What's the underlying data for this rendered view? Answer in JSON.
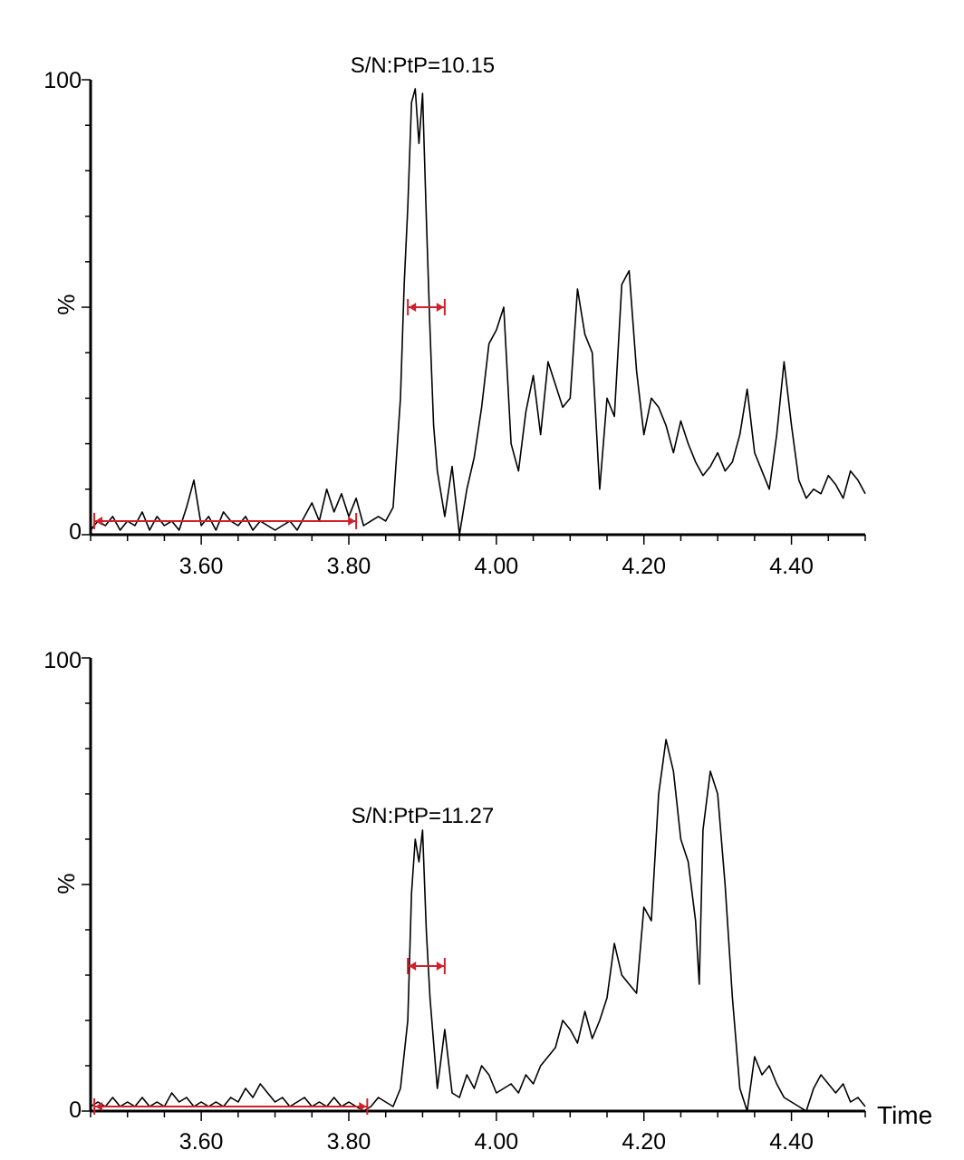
{
  "chart_data": [
    {
      "type": "line",
      "title": "",
      "xlabel": "",
      "ylabel": "%",
      "xlim": [
        3.45,
        4.5
      ],
      "ylim": [
        0,
        100
      ],
      "x_ticks": [
        "3.60",
        "3.80",
        "4.00",
        "4.20",
        "4.40"
      ],
      "y_ticks": [
        "0",
        "100"
      ],
      "grid": false,
      "series": [
        {
          "x": [
            3.45,
            3.46,
            3.47,
            3.48,
            3.49,
            3.5,
            3.51,
            3.52,
            3.53,
            3.54,
            3.55,
            3.56,
            3.57,
            3.58,
            3.59,
            3.6,
            3.61,
            3.62,
            3.63,
            3.64,
            3.65,
            3.66,
            3.67,
            3.68,
            3.69,
            3.7,
            3.71,
            3.72,
            3.73,
            3.74,
            3.75,
            3.76,
            3.77,
            3.78,
            3.79,
            3.8,
            3.81,
            3.82,
            3.83,
            3.84,
            3.85,
            3.86,
            3.87,
            3.875,
            3.88,
            3.885,
            3.89,
            3.895,
            3.9,
            3.905,
            3.91,
            3.915,
            3.92,
            3.93,
            3.94,
            3.95,
            3.96,
            3.97,
            3.98,
            3.99,
            4.0,
            4.01,
            4.02,
            4.03,
            4.04,
            4.05,
            4.06,
            4.07,
            4.08,
            4.09,
            4.1,
            4.11,
            4.12,
            4.13,
            4.14,
            4.15,
            4.16,
            4.17,
            4.18,
            4.19,
            4.2,
            4.21,
            4.22,
            4.23,
            4.24,
            4.25,
            4.26,
            4.27,
            4.28,
            4.29,
            4.3,
            4.31,
            4.32,
            4.33,
            4.34,
            4.35,
            4.36,
            4.37,
            4.38,
            4.39,
            4.4,
            4.41,
            4.42,
            4.43,
            4.44,
            4.45,
            4.46,
            4.47,
            4.48,
            4.49,
            4.5
          ],
          "y": [
            1,
            3,
            2,
            4,
            1,
            3,
            2,
            5,
            1,
            4,
            2,
            3,
            1,
            6,
            12,
            2,
            4,
            1,
            5,
            3,
            2,
            4,
            1,
            3,
            2,
            1,
            2,
            3,
            1,
            4,
            7,
            3,
            10,
            5,
            9,
            4,
            8,
            2,
            3,
            4,
            3,
            6,
            30,
            55,
            72,
            95,
            98,
            86,
            97,
            70,
            45,
            24,
            14,
            4,
            15,
            0,
            10,
            17,
            28,
            42,
            45,
            50,
            20,
            14,
            27,
            35,
            22,
            38,
            33,
            28,
            30,
            54,
            44,
            40,
            10,
            30,
            26,
            55,
            58,
            36,
            22,
            30,
            28,
            24,
            18,
            25,
            20,
            16,
            13,
            15,
            18,
            14,
            16,
            22,
            32,
            18,
            14,
            10,
            22,
            38,
            24,
            12,
            8,
            10,
            9,
            13,
            11,
            8,
            14,
            12,
            9
          ],
          "name": ""
        }
      ],
      "annotations": [
        {
          "text": "S/N:PtP=10.15",
          "x": 3.9,
          "y": 100
        },
        {
          "type": "interval",
          "x0": 3.88,
          "x1": 3.93,
          "y": 50
        },
        {
          "type": "interval",
          "x0": 3.455,
          "x1": 3.81,
          "y": 3
        }
      ]
    },
    {
      "type": "line",
      "title": "",
      "xlabel": "Time",
      "ylabel": "%",
      "xlim": [
        3.45,
        4.5
      ],
      "ylim": [
        0,
        100
      ],
      "x_ticks": [
        "3.60",
        "3.80",
        "4.00",
        "4.20",
        "4.40"
      ],
      "y_ticks": [
        "0",
        "100"
      ],
      "grid": false,
      "series": [
        {
          "x": [
            3.45,
            3.46,
            3.47,
            3.48,
            3.49,
            3.5,
            3.51,
            3.52,
            3.53,
            3.54,
            3.55,
            3.56,
            3.57,
            3.58,
            3.59,
            3.6,
            3.61,
            3.62,
            3.63,
            3.64,
            3.65,
            3.66,
            3.67,
            3.68,
            3.69,
            3.7,
            3.71,
            3.72,
            3.73,
            3.74,
            3.75,
            3.76,
            3.77,
            3.78,
            3.79,
            3.8,
            3.81,
            3.82,
            3.83,
            3.84,
            3.85,
            3.86,
            3.87,
            3.88,
            3.885,
            3.89,
            3.895,
            3.9,
            3.905,
            3.91,
            3.92,
            3.93,
            3.94,
            3.95,
            3.96,
            3.97,
            3.98,
            3.99,
            4.0,
            4.01,
            4.02,
            4.03,
            4.04,
            4.05,
            4.06,
            4.07,
            4.08,
            4.09,
            4.1,
            4.11,
            4.12,
            4.13,
            4.14,
            4.15,
            4.16,
            4.17,
            4.18,
            4.19,
            4.2,
            4.21,
            4.22,
            4.225,
            4.23,
            4.24,
            4.25,
            4.26,
            4.27,
            4.275,
            4.28,
            4.29,
            4.3,
            4.31,
            4.32,
            4.33,
            4.34,
            4.35,
            4.36,
            4.37,
            4.38,
            4.39,
            4.4,
            4.41,
            4.42,
            4.43,
            4.44,
            4.45,
            4.46,
            4.47,
            4.48,
            4.49,
            4.5
          ],
          "y": [
            1,
            2,
            1,
            3,
            1,
            2,
            1,
            3,
            1,
            2,
            1,
            4,
            2,
            3,
            1,
            2,
            1,
            2,
            1,
            3,
            2,
            5,
            3,
            6,
            4,
            2,
            3,
            1,
            2,
            3,
            1,
            2,
            1,
            3,
            1,
            2,
            1,
            0,
            1,
            3,
            2,
            1,
            5,
            20,
            48,
            60,
            55,
            62,
            40,
            25,
            5,
            18,
            4,
            3,
            8,
            5,
            10,
            8,
            4,
            5,
            6,
            4,
            8,
            6,
            10,
            12,
            14,
            20,
            18,
            15,
            22,
            16,
            20,
            25,
            37,
            30,
            28,
            26,
            45,
            42,
            70,
            76,
            82,
            75,
            60,
            55,
            42,
            28,
            62,
            75,
            70,
            50,
            25,
            5,
            0,
            12,
            8,
            10,
            6,
            3,
            2,
            1,
            0,
            5,
            8,
            6,
            4,
            6,
            2,
            3,
            1
          ],
          "name": ""
        }
      ],
      "annotations": [
        {
          "text": "S/N:PtP=11.27",
          "x": 3.9,
          "y": 62
        },
        {
          "type": "interval",
          "x0": 3.88,
          "x1": 3.93,
          "y": 32
        },
        {
          "type": "interval",
          "x0": 3.455,
          "x1": 3.825,
          "y": 1
        }
      ]
    }
  ]
}
